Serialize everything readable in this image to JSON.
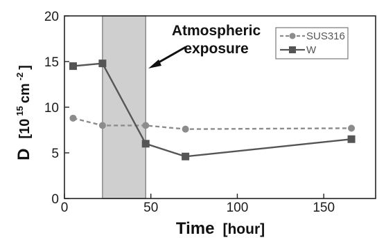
{
  "chart_data": {
    "type": "line",
    "xlabel": "Time",
    "xunit": "[hour]",
    "ylabel": "D",
    "yunit_prefix": "[10",
    "yunit_exp1": "15",
    "yunit_mid": "cm",
    "yunit_exp2": "-2",
    "yunit_suffix": "]",
    "xlim": [
      0,
      180
    ],
    "ylim": [
      0,
      20
    ],
    "xticks": [
      "0",
      "50",
      "100",
      "150"
    ],
    "xtick_values": [
      0,
      50,
      100,
      150
    ],
    "yticks": [
      "0",
      "5",
      "10",
      "15",
      "20"
    ],
    "ytick_values": [
      0,
      5,
      10,
      15,
      20
    ],
    "grid": false,
    "legend_position": "top-right",
    "shaded_region": {
      "x_start": 22,
      "x_end": 47
    },
    "annotation": {
      "line1": "Atmospheric",
      "line2": "exposure"
    },
    "series": [
      {
        "name": "SUS316",
        "style": "dashed",
        "marker": "circle",
        "color": "#8c8c8c",
        "x": [
          5,
          22,
          47,
          70,
          166
        ],
        "y": [
          8.8,
          8.0,
          8.0,
          7.6,
          7.7
        ]
      },
      {
        "name": "W",
        "style": "solid",
        "marker": "square",
        "color": "#555555",
        "x": [
          5,
          22,
          47,
          70,
          166
        ],
        "y": [
          14.5,
          14.8,
          6.0,
          4.6,
          6.5
        ]
      }
    ]
  }
}
